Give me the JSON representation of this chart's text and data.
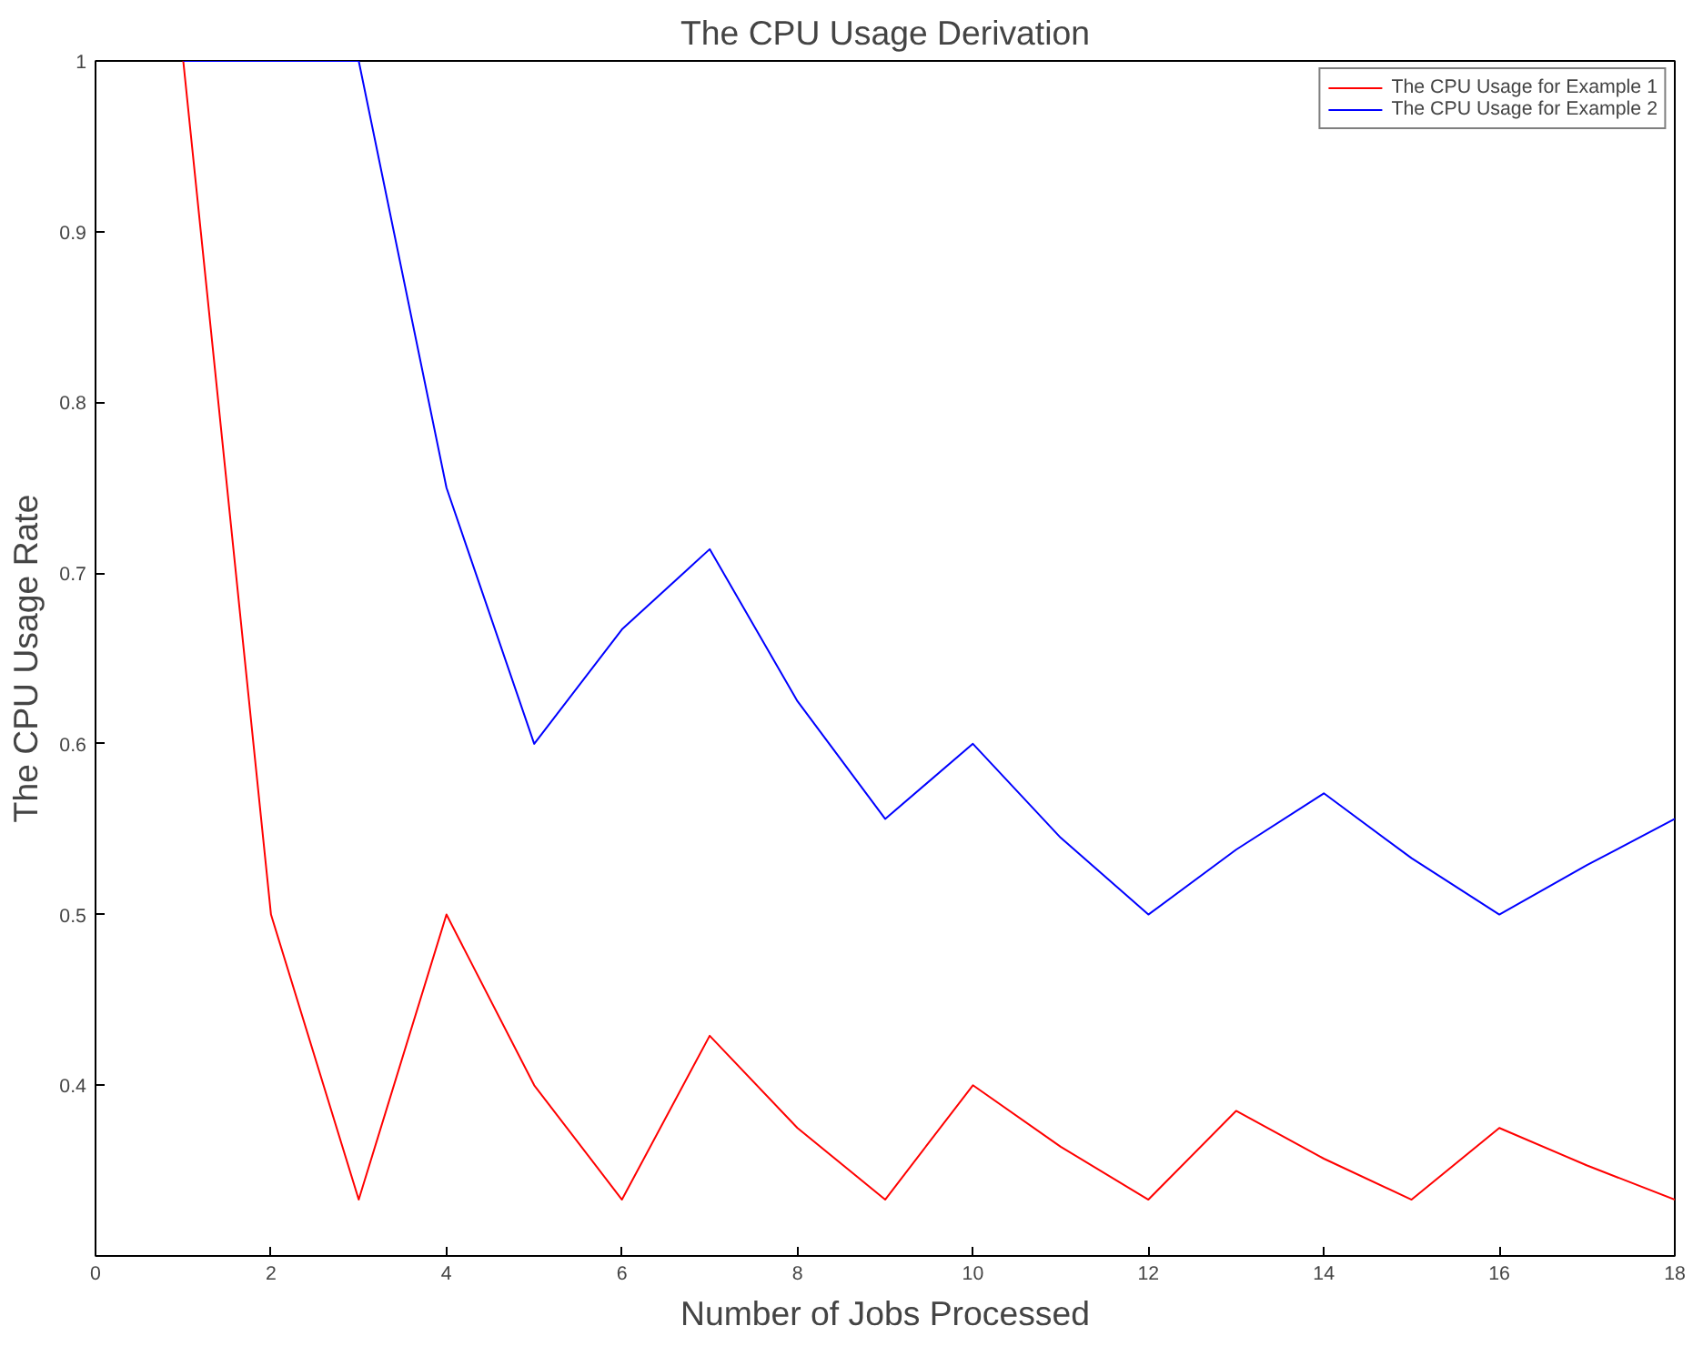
{
  "chart_data": {
    "type": "line",
    "title": "The CPU Usage Derivation",
    "xlabel": "Number of Jobs Processed",
    "ylabel": "The CPU Usage Rate",
    "x": [
      1,
      2,
      3,
      4,
      5,
      6,
      7,
      8,
      9,
      10,
      11,
      12,
      13,
      14,
      15,
      16,
      17,
      18
    ],
    "series": [
      {
        "name": "The CPU Usage for Example 1",
        "color": "#ff0000",
        "values": [
          1,
          0.5,
          0.333,
          0.5,
          0.4,
          0.333,
          0.429,
          0.375,
          0.333,
          0.4,
          0.364,
          0.333,
          0.385,
          0.357,
          0.333,
          0.375,
          0.353,
          0.333
        ]
      },
      {
        "name": "The CPU Usage for Example 2",
        "color": "#0000ff",
        "values": [
          1,
          1,
          1,
          0.75,
          0.6,
          0.667,
          0.714,
          0.625,
          0.556,
          0.6,
          0.545,
          0.5,
          0.538,
          0.571,
          0.533,
          0.5,
          0.529,
          0.556
        ]
      }
    ],
    "xlim": [
      0,
      18
    ],
    "xticks": [
      0,
      2,
      4,
      6,
      8,
      10,
      12,
      14,
      16,
      18
    ],
    "ylim": [
      0.3,
      1
    ],
    "yticks": [
      0.4,
      0.5,
      0.6,
      0.7,
      0.8,
      0.9,
      1
    ],
    "legend": "top right",
    "grid": false,
    "marker": "none",
    "line_style": "solid"
  }
}
